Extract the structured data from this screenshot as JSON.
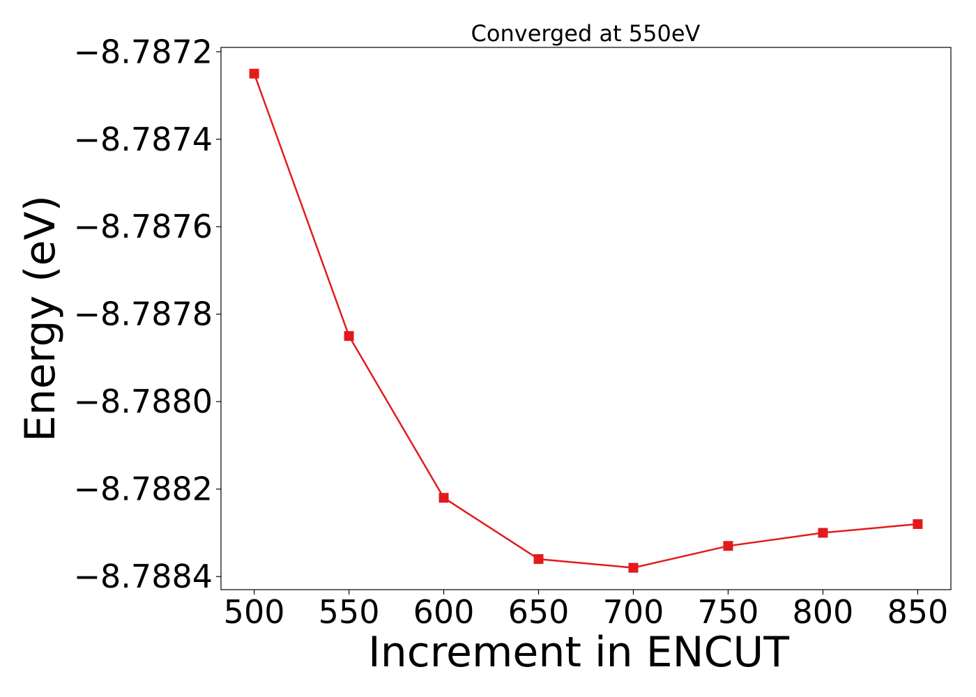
{
  "chart_data": {
    "type": "line",
    "title": "Converged at 550eV",
    "xlabel": "Increment in ENCUT",
    "ylabel": "Energy (eV)",
    "x": [
      500,
      550,
      600,
      650,
      700,
      750,
      800,
      850
    ],
    "series": [
      {
        "values": [
          -8.78725,
          -8.78785,
          -8.78822,
          -8.78836,
          -8.78838,
          -8.78833,
          -8.7883,
          -8.78828
        ],
        "color": "#e31a1c",
        "marker": "square"
      }
    ],
    "xlim": [
      482.5,
      867.5
    ],
    "ylim": [
      -8.78843,
      -8.78719
    ],
    "xticks": [
      500,
      550,
      600,
      650,
      700,
      750,
      800,
      850
    ],
    "xtick_labels": [
      "500",
      "550",
      "600",
      "650",
      "700",
      "750",
      "800",
      "850"
    ],
    "yticks": [
      -8.7872,
      -8.7874,
      -8.7876,
      -8.7878,
      -8.788,
      -8.7882,
      -8.7884
    ],
    "ytick_labels": [
      "−8.7872",
      "−8.7874",
      "−8.7876",
      "−8.7878",
      "−8.7880",
      "−8.7882",
      "−8.7884"
    ],
    "grid": false,
    "legend": "none"
  }
}
